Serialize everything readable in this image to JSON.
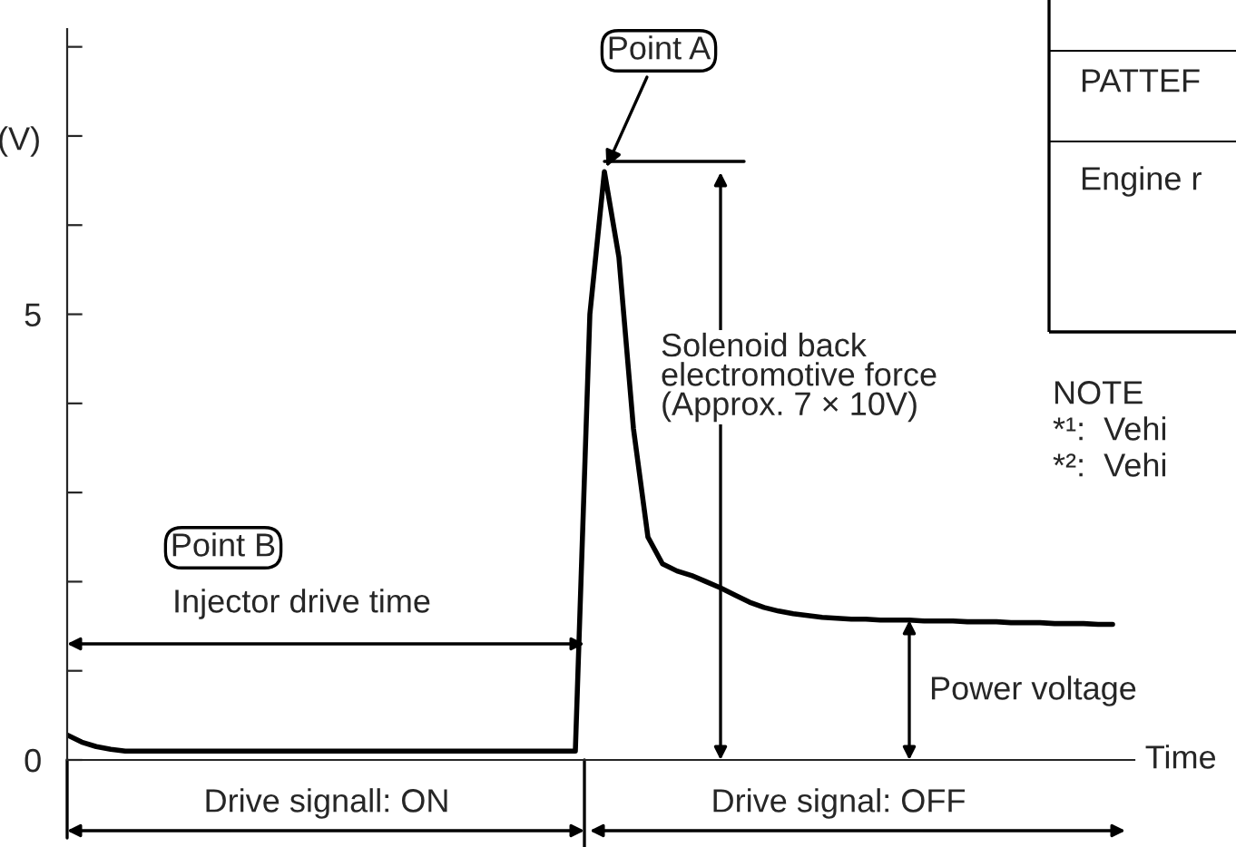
{
  "chart_data": {
    "type": "line",
    "ylabel": "(V)",
    "xlabel": "Time",
    "categories": [
      null,
      null,
      null,
      null,
      null,
      null,
      null,
      null,
      null,
      null,
      null,
      null,
      null,
      null,
      null,
      null,
      null,
      null,
      null,
      null,
      null,
      null,
      null,
      null,
      null,
      null,
      null,
      null,
      null,
      null,
      null,
      null,
      null,
      null,
      null,
      null,
      null,
      null,
      null,
      null,
      null,
      null,
      null,
      null,
      null,
      null,
      null,
      null,
      null,
      null,
      null,
      null,
      null,
      null,
      null,
      null,
      null,
      null,
      null,
      null,
      null,
      null,
      null,
      null,
      null,
      null,
      null,
      null,
      null,
      null,
      null,
      null,
      null
    ],
    "series": [
      {
        "color": "#000000",
        "values": [
          0.28,
          0.2,
          0.15,
          0.12,
          0.1,
          0.1,
          0.1,
          0.1,
          0.1,
          0.1,
          0.1,
          0.1,
          0.1,
          0.1,
          0.1,
          0.1,
          0.1,
          0.1,
          0.1,
          0.1,
          0.1,
          0.1,
          0.1,
          0.1,
          0.1,
          0.1,
          0.1,
          0.1,
          0.1,
          0.1,
          0.1,
          0.1,
          0.1,
          0.1,
          0.1,
          0.1,
          5.0,
          6.6,
          5.64,
          3.72,
          2.5,
          2.2,
          2.12,
          2.07,
          2.0,
          1.93,
          1.85,
          1.77,
          1.71,
          1.67,
          1.64,
          1.62,
          1.6,
          1.59,
          1.58,
          1.58,
          1.57,
          1.57,
          1.57,
          1.56,
          1.56,
          1.56,
          1.55,
          1.55,
          1.55,
          1.54,
          1.54,
          1.54,
          1.53,
          1.53,
          1.53,
          1.52,
          1.52
        ]
      }
    ],
    "ylim": [
      0,
      8.2
    ],
    "yticks": [
      0,
      {
        "value": 1,
        "label": null
      },
      {
        "value": 2,
        "label": null
      },
      {
        "value": 3,
        "label": null
      },
      {
        "value": 4,
        "label": null
      },
      5,
      {
        "value": 6,
        "label": null
      },
      {
        "value": 7,
        "label": null
      },
      {
        "value": 8,
        "label": null
      }
    ],
    "grid": false,
    "legend": false,
    "marker": "none",
    "line_style": "solid",
    "annotations": [
      "Point A",
      "Point B",
      "Injector drive time",
      "Solenoid back\nelectromotive force\n(Approx. 7 × 10V)",
      "Power voltage",
      "Drive signall: ON",
      "Drive signal: OFF",
      "PATTEF",
      "Engine r",
      "NOTE",
      "*¹:  Vehi",
      "*²:  Vehi"
    ]
  }
}
